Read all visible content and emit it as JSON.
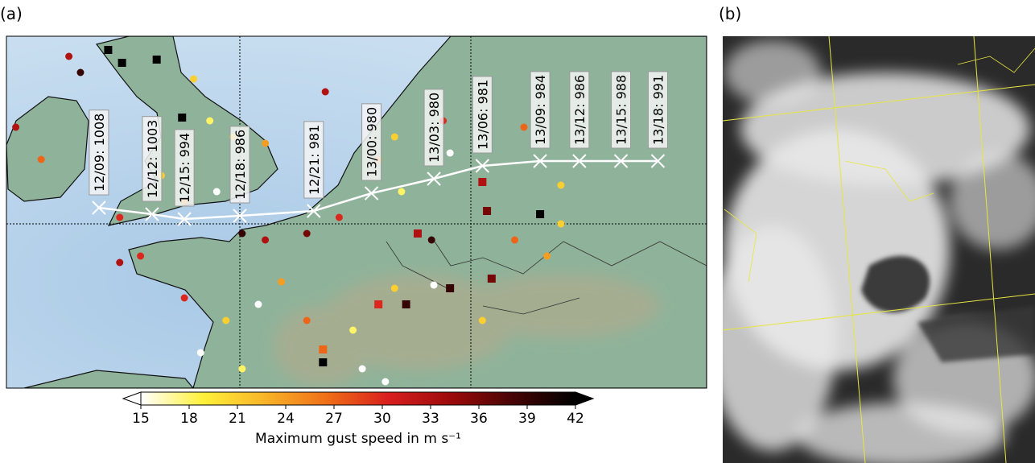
{
  "panel_a": {
    "label": "(a)",
    "track": [
      {
        "label": "12/09: 1008",
        "lon": -6.1,
        "lat": 50.5
      },
      {
        "label": "12/12: 1003",
        "lon": -3.8,
        "lat": 50.3
      },
      {
        "label": "12/15: 994",
        "lon": -2.4,
        "lat": 50.15
      },
      {
        "label": "12/18: 986",
        "lon": 0.0,
        "lat": 50.25
      },
      {
        "label": "12/21: 981",
        "lon": 3.2,
        "lat": 50.4
      },
      {
        "label": "13/00: 980",
        "lon": 5.7,
        "lat": 50.95
      },
      {
        "label": "13/03: 980",
        "lon": 8.4,
        "lat": 51.4
      },
      {
        "label": "13/06: 981",
        "lon": 10.5,
        "lat": 51.8
      },
      {
        "label": "13/09: 984",
        "lon": 13.0,
        "lat": 51.95
      },
      {
        "label": "13/12: 986",
        "lon": 14.7,
        "lat": 51.95
      },
      {
        "label": "13/15: 988",
        "lon": 16.5,
        "lat": 51.95
      },
      {
        "label": "13/18: 991",
        "lon": 18.1,
        "lat": 51.95
      }
    ],
    "stations": [
      {
        "lon": -5.7,
        "lat": 55.4,
        "value": 42,
        "marker": "square"
      },
      {
        "lon": -5.1,
        "lat": 55.0,
        "value": 42,
        "marker": "square"
      },
      {
        "lon": -3.6,
        "lat": 55.1,
        "value": 42,
        "marker": "square"
      },
      {
        "lon": -7.4,
        "lat": 55.2,
        "value": 33,
        "marker": "circle"
      },
      {
        "lon": -6.9,
        "lat": 54.7,
        "value": 39,
        "marker": "circle"
      },
      {
        "lon": -2.5,
        "lat": 53.3,
        "value": 42,
        "marker": "square"
      },
      {
        "lon": -2.0,
        "lat": 54.5,
        "value": 21,
        "marker": "circle"
      },
      {
        "lon": -1.3,
        "lat": 53.2,
        "value": 18,
        "marker": "circle"
      },
      {
        "lon": -0.3,
        "lat": 52.7,
        "value": 21,
        "marker": "circle"
      },
      {
        "lon": 1.1,
        "lat": 52.5,
        "value": 24,
        "marker": "circle"
      },
      {
        "lon": -1.0,
        "lat": 51.0,
        "value": 15,
        "marker": "circle"
      },
      {
        "lon": -3.4,
        "lat": 51.5,
        "value": 21,
        "marker": "circle"
      },
      {
        "lon": -5.2,
        "lat": 50.2,
        "value": 30,
        "marker": "circle"
      },
      {
        "lon": -2.4,
        "lat": 50.7,
        "value": 24,
        "marker": "circle"
      },
      {
        "lon": -9.7,
        "lat": 53.0,
        "value": 33,
        "marker": "circle"
      },
      {
        "lon": -8.6,
        "lat": 52.0,
        "value": 27,
        "marker": "circle"
      },
      {
        "lon": 0.1,
        "lat": 49.7,
        "value": 39,
        "marker": "circle"
      },
      {
        "lon": 1.1,
        "lat": 49.5,
        "value": 33,
        "marker": "circle"
      },
      {
        "lon": 2.9,
        "lat": 49.7,
        "value": 36,
        "marker": "circle"
      },
      {
        "lon": 4.3,
        "lat": 50.2,
        "value": 30,
        "marker": "circle"
      },
      {
        "lon": 3.7,
        "lat": 54.1,
        "value": 33,
        "marker": "circle"
      },
      {
        "lon": 6.0,
        "lat": 52.0,
        "value": 24,
        "marker": "circle"
      },
      {
        "lon": 7.0,
        "lat": 51.0,
        "value": 18,
        "marker": "circle"
      },
      {
        "lon": 8.3,
        "lat": 49.5,
        "value": 39,
        "marker": "circle"
      },
      {
        "lon": 7.7,
        "lat": 49.7,
        "value": 33,
        "marker": "square"
      },
      {
        "lon": 10.5,
        "lat": 51.3,
        "value": 33,
        "marker": "square"
      },
      {
        "lon": 10.7,
        "lat": 50.4,
        "value": 36,
        "marker": "square"
      },
      {
        "lon": 13.0,
        "lat": 50.3,
        "value": 42,
        "marker": "square"
      },
      {
        "lon": 11.9,
        "lat": 49.5,
        "value": 27,
        "marker": "circle"
      },
      {
        "lon": 13.9,
        "lat": 51.2,
        "value": 21,
        "marker": "circle"
      },
      {
        "lon": 13.3,
        "lat": 49.0,
        "value": 24,
        "marker": "circle"
      },
      {
        "lon": 10.9,
        "lat": 48.3,
        "value": 36,
        "marker": "square"
      },
      {
        "lon": 8.4,
        "lat": 48.1,
        "value": 15,
        "marker": "circle"
      },
      {
        "lon": 9.1,
        "lat": 48.0,
        "value": 39,
        "marker": "square"
      },
      {
        "lon": 7.2,
        "lat": 47.5,
        "value": 39,
        "marker": "square"
      },
      {
        "lon": 6.7,
        "lat": 48.0,
        "value": 21,
        "marker": "circle"
      },
      {
        "lon": 6.0,
        "lat": 47.5,
        "value": 30,
        "marker": "square"
      },
      {
        "lon": 3.6,
        "lat": 45.7,
        "value": 42,
        "marker": "square"
      },
      {
        "lon": 3.6,
        "lat": 46.1,
        "value": 27,
        "marker": "square"
      },
      {
        "lon": 1.8,
        "lat": 48.2,
        "value": 24,
        "marker": "circle"
      },
      {
        "lon": 0.8,
        "lat": 47.5,
        "value": 15,
        "marker": "circle"
      },
      {
        "lon": -0.6,
        "lat": 47.0,
        "value": 21,
        "marker": "circle"
      },
      {
        "lon": -2.4,
        "lat": 47.7,
        "value": 30,
        "marker": "circle"
      },
      {
        "lon": -4.3,
        "lat": 49.0,
        "value": 30,
        "marker": "circle"
      },
      {
        "lon": -5.2,
        "lat": 48.8,
        "value": 33,
        "marker": "circle"
      },
      {
        "lon": -1.7,
        "lat": 46.0,
        "value": 15,
        "marker": "circle"
      },
      {
        "lon": 0.1,
        "lat": 45.5,
        "value": 18,
        "marker": "circle"
      },
      {
        "lon": 5.3,
        "lat": 45.5,
        "value": 15,
        "marker": "circle"
      },
      {
        "lon": 6.3,
        "lat": 45.1,
        "value": 15,
        "marker": "circle"
      },
      {
        "lon": 2.9,
        "lat": 47.0,
        "value": 27,
        "marker": "circle"
      },
      {
        "lon": 4.9,
        "lat": 46.7,
        "value": 18,
        "marker": "circle"
      },
      {
        "lon": 10.5,
        "lat": 47.0,
        "value": 21,
        "marker": "circle"
      },
      {
        "lon": 9.1,
        "lat": 52.2,
        "value": 15,
        "marker": "circle"
      },
      {
        "lon": 12.3,
        "lat": 53.0,
        "value": 27,
        "marker": "circle"
      },
      {
        "lon": 13.9,
        "lat": 50.0,
        "value": 21,
        "marker": "circle"
      },
      {
        "lon": 8.8,
        "lat": 53.2,
        "value": 30,
        "marker": "circle"
      },
      {
        "lon": 6.7,
        "lat": 52.7,
        "value": 21,
        "marker": "circle"
      }
    ],
    "colorbar": {
      "label": "Maximum gust speed in m s⁻¹",
      "lim": [
        15,
        42
      ],
      "ticks": [
        15,
        18,
        21,
        24,
        27,
        30,
        33,
        36,
        39,
        42
      ],
      "colormap": [
        "#ffffff",
        "#fff03a",
        "#f8b428",
        "#ef6e18",
        "#d81e1e",
        "#9c0a0a",
        "#460404",
        "#000000"
      ]
    }
  },
  "panel_b": {
    "label": "(b)"
  }
}
